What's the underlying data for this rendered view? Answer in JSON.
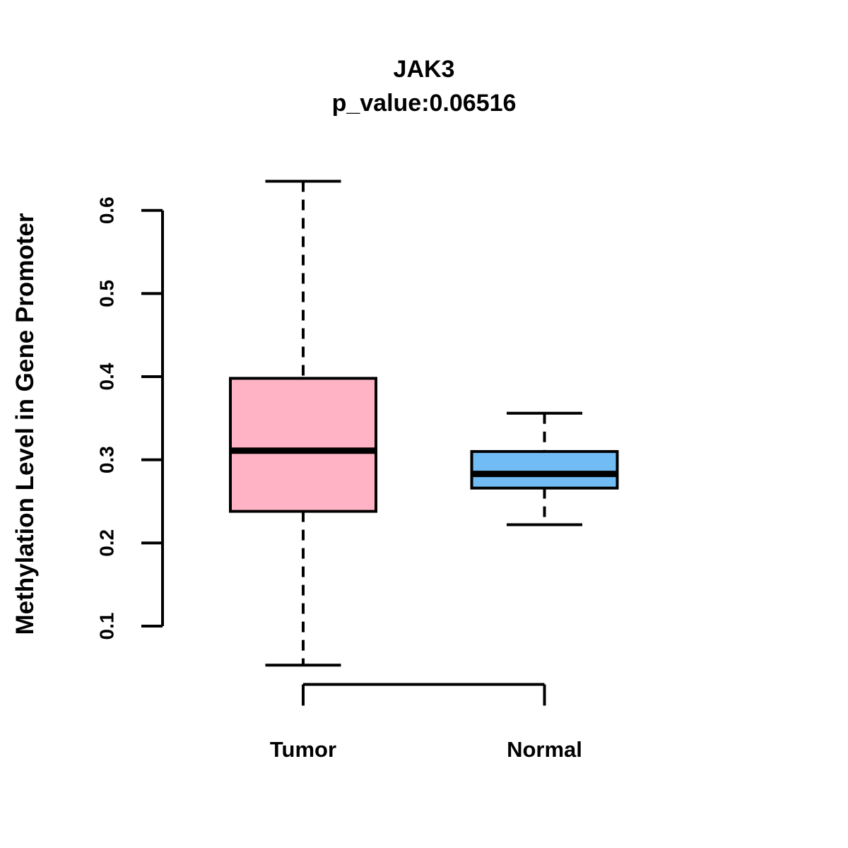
{
  "chart_data": {
    "type": "boxplot",
    "title": "JAK3",
    "subtitle": "p_value:0.06516",
    "p_value": 0.06516,
    "ylabel": "Methylation Level in Gene Promoter",
    "xlabel": "",
    "categories": [
      "Tumor",
      "Normal"
    ],
    "series": [
      {
        "name": "Tumor",
        "whisker_low": 0.053,
        "q1": 0.238,
        "median": 0.311,
        "q3": 0.398,
        "whisker_high": 0.635,
        "fill_color": "#FFB3C4"
      },
      {
        "name": "Normal",
        "whisker_low": 0.222,
        "q1": 0.266,
        "median": 0.283,
        "q3": 0.31,
        "whisker_high": 0.356,
        "fill_color": "#72BCF5"
      }
    ],
    "ytick_values": [
      0.1,
      0.2,
      0.3,
      0.4,
      0.5,
      0.6
    ],
    "ytick_labels": [
      "0.1",
      "0.2",
      "0.3",
      "0.4",
      "0.5",
      "0.6"
    ],
    "ylim": [
      0.04,
      0.66
    ],
    "grid": false,
    "legend": false,
    "stroke_color": "#000000",
    "background": "#FFFFFF"
  }
}
